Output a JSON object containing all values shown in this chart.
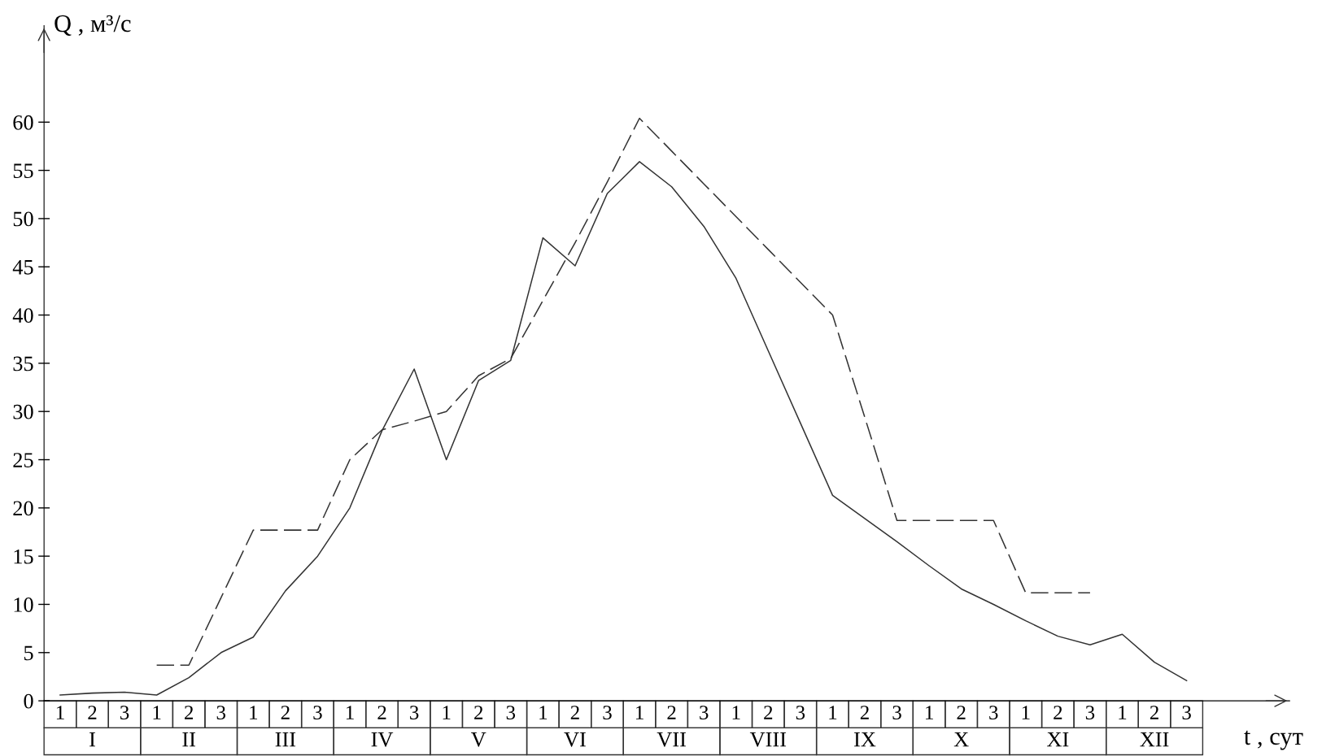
{
  "chart_data": {
    "type": "line",
    "xlabel": "t , сут",
    "ylabel": "Q , м³/с",
    "categories": [
      "1",
      "2",
      "3",
      "1",
      "2",
      "3",
      "1",
      "2",
      "3",
      "1",
      "2",
      "3",
      "1",
      "2",
      "3",
      "1",
      "2",
      "3",
      "1",
      "2",
      "3",
      "1",
      "2",
      "3",
      "1",
      "2",
      "3",
      "1",
      "2",
      "3",
      "1",
      "2",
      "3",
      "1",
      "2",
      "3"
    ],
    "annotations": [
      "I",
      "II",
      "III",
      "IV",
      "V",
      "VI",
      "VII",
      "VIII",
      "IX",
      "X",
      "XI",
      "XII"
    ],
    "series": [
      {
        "color": "#333333",
        "line_style": "solid",
        "values": [
          0.6,
          0.8,
          0.9,
          0.6,
          2.4,
          5.0,
          6.6,
          11.4,
          15,
          20,
          28,
          34.4,
          25,
          33.2,
          35.3,
          48,
          45.1,
          52.6,
          55.9,
          53.3,
          49.2,
          43.8,
          36.3,
          28.8,
          21.3,
          18.9,
          16.5,
          14.0,
          11.6,
          10.0,
          8.3,
          6.7,
          5.8,
          6.9,
          4.0,
          2.1
        ]
      },
      {
        "color": "#333333",
        "line_style": "dashed",
        "values": [
          null,
          null,
          null,
          3.7,
          3.7,
          10.7,
          17.7,
          17.7,
          17.7,
          25,
          28.1,
          29.0,
          30.0,
          33.7,
          35.5,
          41.5,
          47.5,
          53.8,
          60.4,
          57.0,
          53.6,
          50.2,
          46.8,
          43.4,
          40.0,
          29.4,
          18.7,
          18.7,
          18.7,
          18.7,
          11.2,
          11.2,
          11.2,
          null,
          null,
          null
        ]
      }
    ],
    "ylim": [
      0,
      70
    ],
    "yticks": [
      0,
      5,
      10,
      15,
      20,
      25,
      30,
      35,
      40,
      45,
      50,
      55,
      60
    ]
  }
}
